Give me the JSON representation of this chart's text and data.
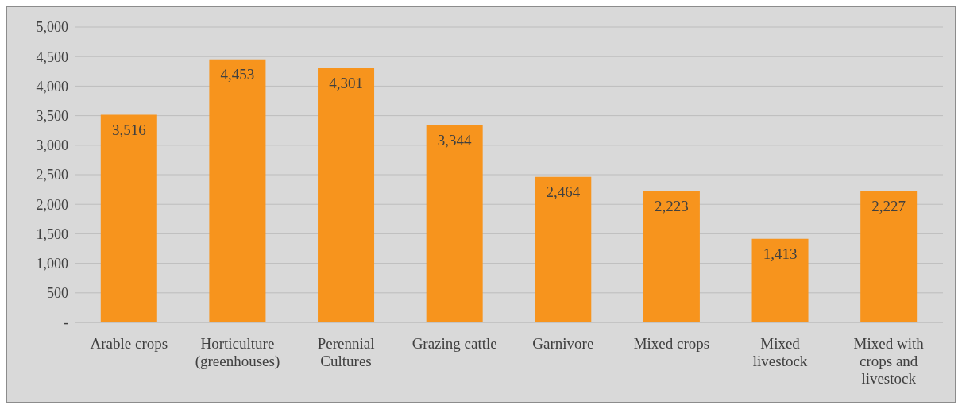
{
  "chart_data": {
    "type": "bar",
    "categories": [
      "Arable crops",
      "Horticulture (greenhouses)",
      "Perennial Cultures",
      "Grazing cattle",
      "Garnivore",
      "Mixed crops",
      "Mixed livestock",
      "Mixed with crops and livestock"
    ],
    "values": [
      3516,
      4453,
      4301,
      3344,
      2464,
      2223,
      1413,
      2227
    ],
    "value_labels": [
      "3,516",
      "4,453",
      "4,301",
      "3,344",
      "2,464",
      "2,223",
      "1,413",
      "2,227"
    ],
    "color": "#f7941d",
    "ylim": [
      0,
      5000
    ],
    "yticks": [
      {
        "value": 0,
        "label": "-"
      },
      {
        "value": 500,
        "label": "500"
      },
      {
        "value": 1000,
        "label": "1,000"
      },
      {
        "value": 1500,
        "label": "1,500"
      },
      {
        "value": 2000,
        "label": "2,000"
      },
      {
        "value": 2500,
        "label": "2,500"
      },
      {
        "value": 3000,
        "label": "3,000"
      },
      {
        "value": 3500,
        "label": "3,500"
      },
      {
        "value": 4000,
        "label": "4,000"
      },
      {
        "value": 4500,
        "label": "4,500"
      },
      {
        "value": 5000,
        "label": "5,000"
      }
    ],
    "grid": "y"
  }
}
